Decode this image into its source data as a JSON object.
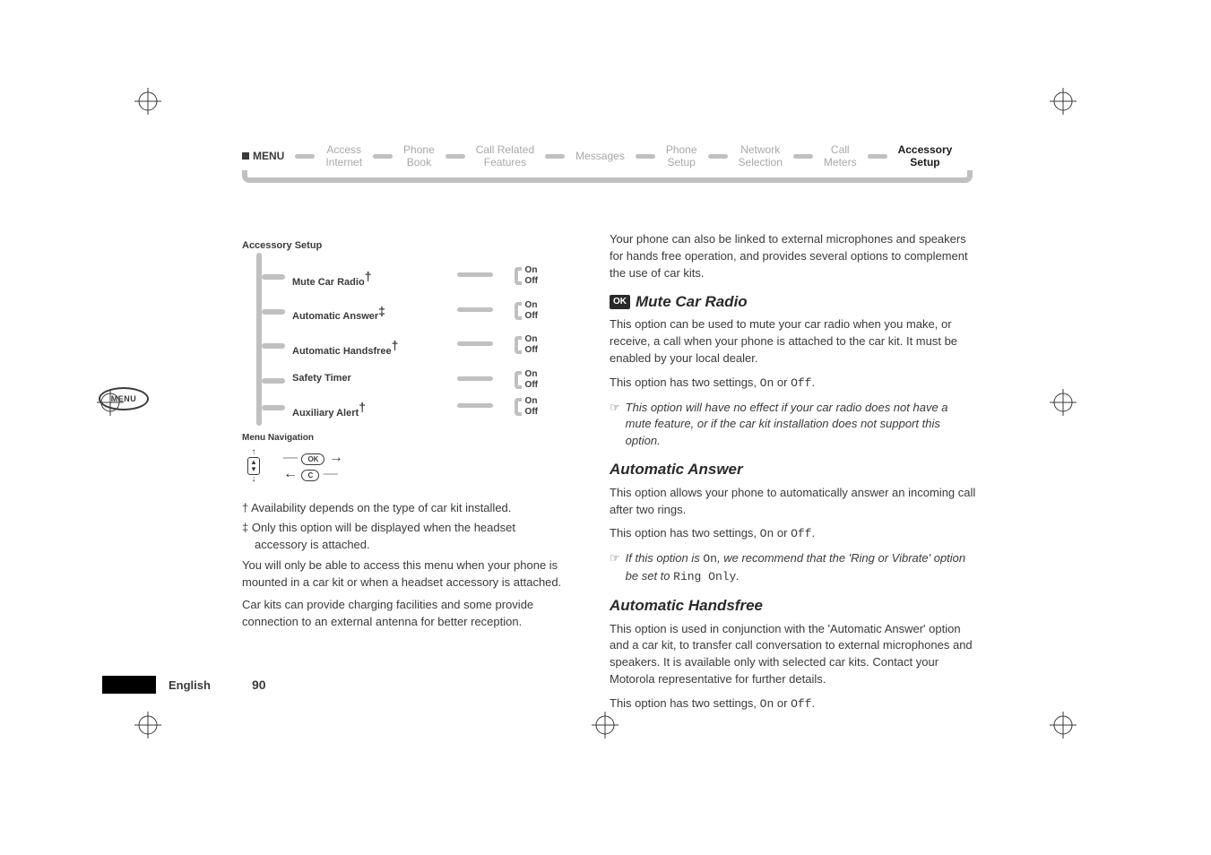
{
  "crop_color": "#3a3a3a",
  "nav": {
    "start": "MENU",
    "items": [
      "Access\nInternet",
      "Phone\nBook",
      "Call Related\nFeatures",
      "Messages",
      "Phone\nSetup",
      "Network\nSelection",
      "Call\nMeters",
      "Accessory\nSetup"
    ],
    "active_index": 7
  },
  "menu_oval": "MENU",
  "tree": {
    "title": "Accessory Setup",
    "items": [
      {
        "label": "Mute Car Radio",
        "mark": "†",
        "on": "On",
        "off": "Off"
      },
      {
        "label": "Automatic Answer",
        "mark": "‡",
        "on": "On",
        "off": "Off"
      },
      {
        "label": "Automatic Handsfree",
        "mark": "†",
        "on": "On",
        "off": "Off"
      },
      {
        "label": "Safety Timer",
        "mark": "",
        "on": "On",
        "off": "Off"
      },
      {
        "label": "Auxiliary Alert",
        "mark": "†",
        "on": "On",
        "off": "Off"
      }
    ],
    "nav_hint": "Menu Navigation",
    "ok_pill": "OK",
    "c_pill": "C"
  },
  "left_text": {
    "foot1": "†  Availability depends on the type of car kit installed.",
    "foot2": "‡  Only this option will be displayed when the headset accessory is attached.",
    "p1": "You will only be able to access this menu when your phone is mounted in a car kit or when a headset accessory is attached.",
    "p2": "Car kits can provide charging facilities and some provide connection to an external antenna for better reception."
  },
  "right_text": {
    "intro": "Your phone can also be linked to external microphones and speakers for hands free operation, and provides several options to complement the use of car kits.",
    "s1_title": "Mute Car Radio",
    "s1_badge": "OK",
    "s1_p1": "This option can be used to mute your car radio when you make, or receive, a call when your phone is attached to the car kit. It must be enabled by your local dealer.",
    "s1_p2a": "This option has two settings, ",
    "s1_p2_on": "On",
    "s1_p2_mid": " or ",
    "s1_p2_off": "Off",
    "s1_p2b": ".",
    "s1_note": "This option will have no effect if your car radio does not have a mute feature, or if the car kit installation does not support this option.",
    "s2_title": "Automatic Answer",
    "s2_p1": "This option allows your phone to automatically answer an incoming call after two rings.",
    "s2_p2a": "This option has two settings, ",
    "s2_note_a": "If this option is ",
    "s2_note_on": "On",
    "s2_note_b": ", we recommend that the 'Ring or Vibrate' option be set to ",
    "s2_note_ring": "Ring Only",
    "s2_note_c": ".",
    "s3_title": "Automatic Handsfree",
    "s3_p1": "This option is used in conjunction with the 'Automatic Answer' option and a car kit, to transfer call conversation to external microphones and speakers. It is available only with selected car kits. Contact your Motorola representative for further details.",
    "s3_p2a": "This option has two settings, "
  },
  "footer": {
    "lang": "English",
    "page": "90"
  }
}
